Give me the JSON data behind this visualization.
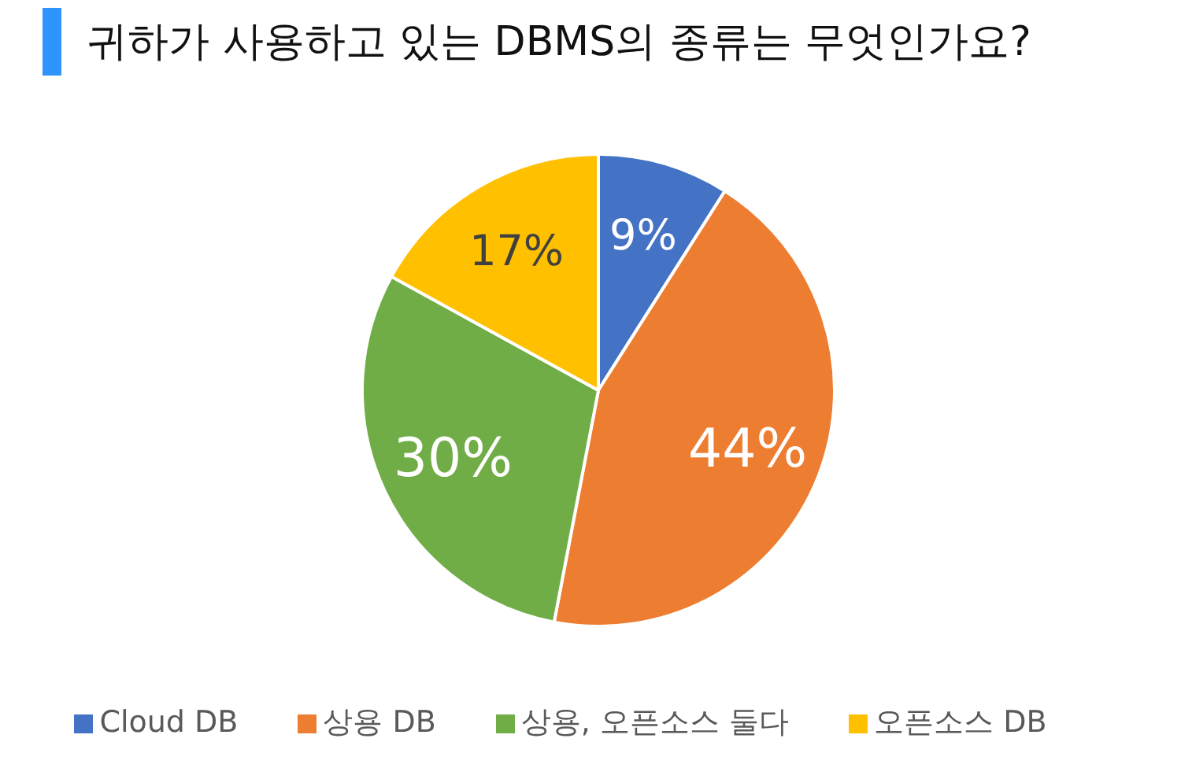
{
  "chart_data": {
    "type": "pie",
    "title": "귀하가 사용하고 있는 DBMS의 종류는 무엇인가요?",
    "categories": [
      "Cloud DB",
      "상용 DB",
      "상용, 오픈소스 둘다",
      "오픈소스 DB"
    ],
    "values": [
      9,
      44,
      30,
      17
    ],
    "value_labels": [
      "9%",
      "44%",
      "30%",
      "17%"
    ],
    "colors": [
      "#4472c4",
      "#ed7d31",
      "#70ad47",
      "#ffc000"
    ],
    "legend": "bottom"
  }
}
